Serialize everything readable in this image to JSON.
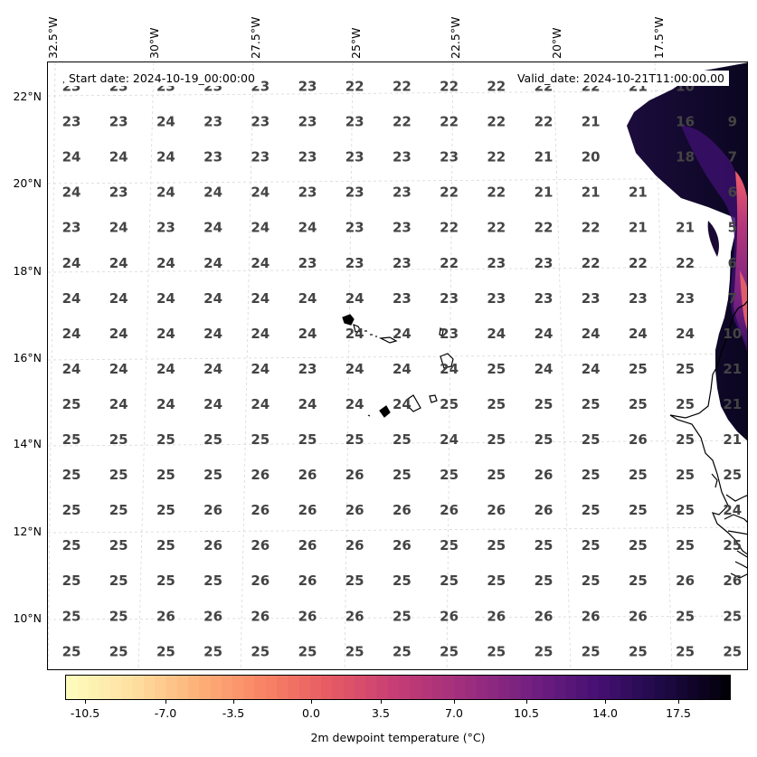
{
  "map": {
    "start_date_text": "Start date: 2024-10-19_00:00:00",
    "valid_date_text": "Valid_date: 2024-10-21T11:00:00.00",
    "lon_labels": [
      "32.5°W",
      "30°W",
      "27.5°W",
      "25°W",
      "22.5°W",
      "20°W",
      "17.5°W"
    ],
    "lat_labels": [
      "22°N",
      "20°N",
      "18°N",
      "16°N",
      "14°N",
      "12°N",
      "10°N"
    ],
    "dewpoint_grid": [
      [
        "23",
        "23",
        "23",
        "23",
        "23",
        "23",
        "22",
        "22",
        "22",
        "22",
        "22",
        "22",
        "21",
        "10"
      ],
      [
        "23",
        "23",
        "24",
        "23",
        "23",
        "23",
        "23",
        "22",
        "22",
        "22",
        "22",
        "21",
        "",
        "16",
        "9"
      ],
      [
        "24",
        "24",
        "24",
        "23",
        "23",
        "23",
        "23",
        "23",
        "23",
        "22",
        "21",
        "20",
        "",
        "18",
        "7"
      ],
      [
        "24",
        "23",
        "24",
        "24",
        "24",
        "23",
        "23",
        "23",
        "22",
        "22",
        "21",
        "21",
        "21",
        "",
        "6"
      ],
      [
        "23",
        "24",
        "23",
        "24",
        "24",
        "24",
        "23",
        "23",
        "22",
        "22",
        "22",
        "22",
        "21",
        "21",
        "5"
      ],
      [
        "24",
        "24",
        "24",
        "24",
        "24",
        "23",
        "23",
        "23",
        "22",
        "23",
        "23",
        "22",
        "22",
        "22",
        "6"
      ],
      [
        "24",
        "24",
        "24",
        "24",
        "24",
        "24",
        "24",
        "23",
        "23",
        "23",
        "23",
        "23",
        "23",
        "23",
        "7"
      ],
      [
        "24",
        "24",
        "24",
        "24",
        "24",
        "24",
        "24",
        "24",
        "23",
        "24",
        "24",
        "24",
        "24",
        "24",
        "10"
      ],
      [
        "24",
        "24",
        "24",
        "24",
        "24",
        "23",
        "24",
        "24",
        "24",
        "25",
        "24",
        "24",
        "25",
        "25",
        "21"
      ],
      [
        "25",
        "24",
        "24",
        "24",
        "24",
        "24",
        "24",
        "24",
        "25",
        "25",
        "25",
        "25",
        "25",
        "25",
        "21"
      ],
      [
        "25",
        "25",
        "25",
        "25",
        "25",
        "25",
        "25",
        "25",
        "24",
        "25",
        "25",
        "25",
        "26",
        "25",
        "21"
      ],
      [
        "25",
        "25",
        "25",
        "25",
        "26",
        "26",
        "26",
        "25",
        "25",
        "25",
        "26",
        "25",
        "25",
        "25",
        "25"
      ],
      [
        "25",
        "25",
        "25",
        "26",
        "26",
        "26",
        "26",
        "26",
        "26",
        "26",
        "26",
        "25",
        "25",
        "25",
        "24"
      ],
      [
        "25",
        "25",
        "25",
        "26",
        "26",
        "26",
        "26",
        "26",
        "25",
        "25",
        "25",
        "25",
        "25",
        "25",
        "25"
      ],
      [
        "25",
        "25",
        "25",
        "25",
        "26",
        "26",
        "25",
        "25",
        "25",
        "25",
        "25",
        "25",
        "25",
        "26",
        "26"
      ],
      [
        "25",
        "25",
        "26",
        "26",
        "26",
        "26",
        "26",
        "25",
        "26",
        "26",
        "26",
        "26",
        "26",
        "25",
        "25"
      ],
      [
        "25",
        "25",
        "25",
        "25",
        "25",
        "25",
        "25",
        "25",
        "25",
        "25",
        "25",
        "25",
        "25",
        "25",
        "25"
      ]
    ],
    "colors": {
      "land_dark": "#0d0829",
      "land_purple": "#5b1a80",
      "land_pink": "#b8377a",
      "label_gray": "#444444"
    }
  },
  "colorbar": {
    "ticks": [
      "-10.5",
      "-7.0",
      "-3.5",
      "0.0",
      "3.5",
      "7.0",
      "10.5",
      "14.0",
      "17.5"
    ],
    "label": "2m dewpoint temperature ($^\\circ$C)",
    "label_rendered": "2m dewpoint temperature (°C)",
    "colormap": "magma_r"
  }
}
